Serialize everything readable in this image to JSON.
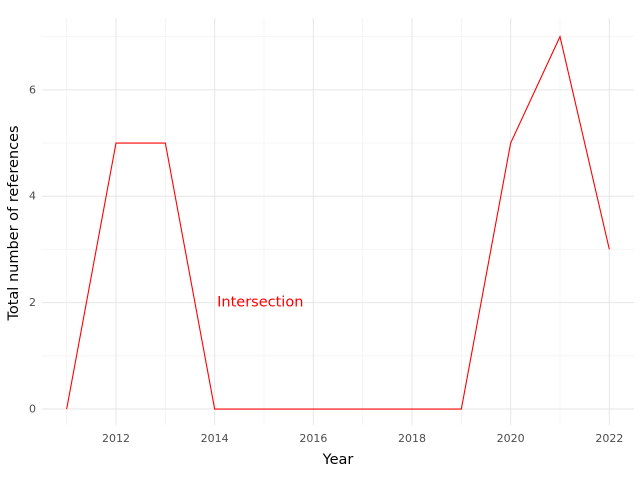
{
  "chart_data": {
    "type": "line",
    "title": "",
    "xlabel": "Year",
    "ylabel": "Total number of references",
    "xlim": [
      2010.5,
      2022.5
    ],
    "ylim": [
      -0.3,
      7.35
    ],
    "x_ticks": [
      2012,
      2014,
      2016,
      2018,
      2020,
      2022
    ],
    "y_ticks": [
      0,
      2,
      4,
      6
    ],
    "grid": true,
    "legend": "none",
    "series": [
      {
        "color": "#ff0000",
        "x": [
          2011,
          2012,
          2013,
          2014,
          2015,
          2016,
          2017,
          2018,
          2019,
          2020,
          2021,
          2022
        ],
        "y": [
          0,
          5,
          5,
          0,
          0,
          0,
          0,
          0,
          0,
          5,
          7,
          3
        ]
      }
    ],
    "annotations": [
      {
        "text": "Intersection",
        "x": 2014.05,
        "y": 2,
        "color": "#ff0000"
      }
    ]
  }
}
